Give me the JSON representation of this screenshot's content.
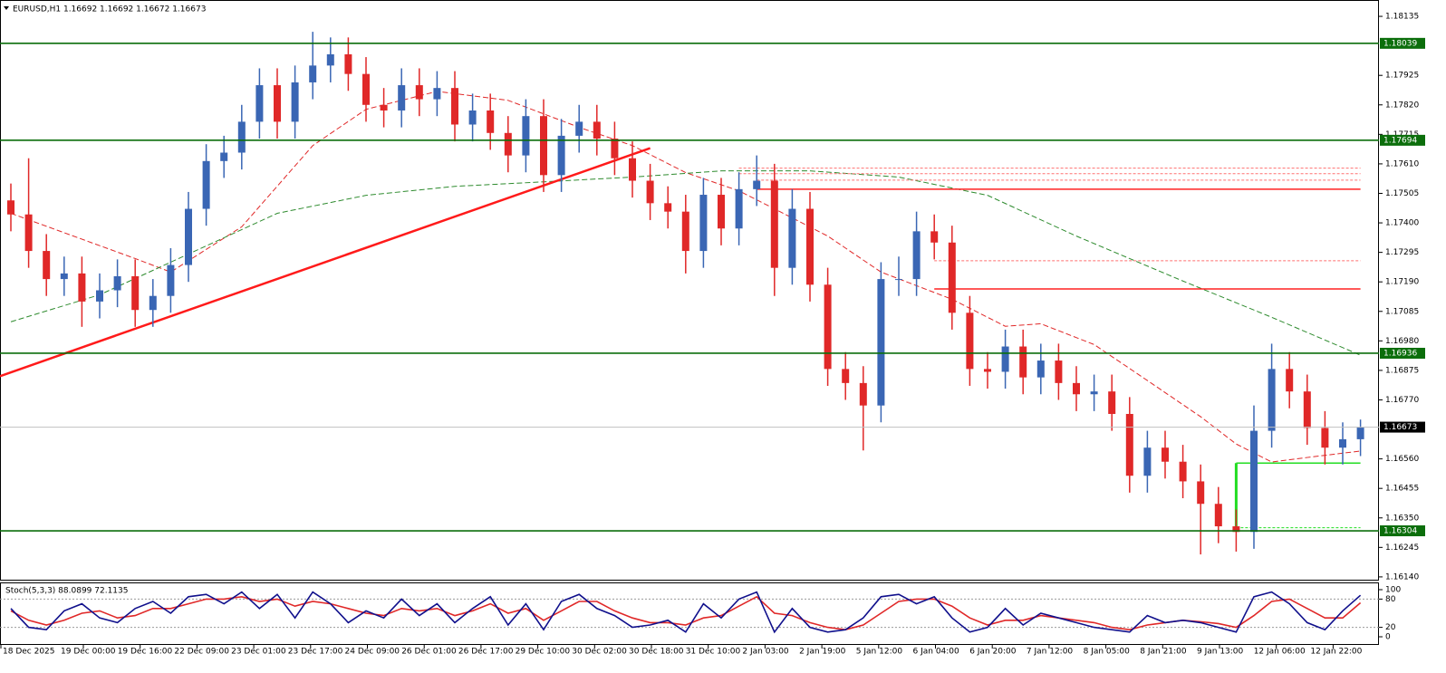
{
  "chart_data": [
    {
      "type": "candlestick",
      "title": "EURUSD,H1  1.16692 1.16692 1.16672 1.16673",
      "up_color": "#3a66b4",
      "down_color": "#e02828",
      "ylim": [
        1.1613,
        1.1819
      ],
      "yticks": [
        {
          "value": 1.18135,
          "label": "1.18135"
        },
        {
          "value": 1.17925,
          "label": "1.17925"
        },
        {
          "value": 1.1782,
          "label": "1.17820"
        },
        {
          "value": 1.17715,
          "label": "1.17715"
        },
        {
          "value": 1.1761,
          "label": "1.17610"
        },
        {
          "value": 1.17505,
          "label": "1.17505"
        },
        {
          "value": 1.174,
          "label": "1.17400"
        },
        {
          "value": 1.17295,
          "label": "1.17295"
        },
        {
          "value": 1.1719,
          "label": "1.17190"
        },
        {
          "value": 1.17085,
          "label": "1.17085"
        },
        {
          "value": 1.1698,
          "label": "1.16980"
        },
        {
          "value": 1.16875,
          "label": "1.16875"
        },
        {
          "value": 1.1677,
          "label": "1.16770"
        },
        {
          "value": 1.1656,
          "label": "1.16560"
        },
        {
          "value": 1.16455,
          "label": "1.16455"
        },
        {
          "value": 1.1635,
          "label": "1.16350"
        },
        {
          "value": 1.16245,
          "label": "1.16245"
        },
        {
          "value": 1.1614,
          "label": "1.16140"
        }
      ],
      "x_labels": [
        "18 Dec 2025",
        "19 Dec 00:00",
        "19 Dec 16:00",
        "22 Dec 09:00",
        "23 Dec 01:00",
        "23 Dec 17:00",
        "24 Dec 09:00",
        "26 Dec 01:00",
        "26 Dec 17:00",
        "29 Dec 10:00",
        "30 Dec 02:00",
        "30 Dec 18:00",
        "31 Dec 10:00",
        "2 Jan 03:00",
        "2 Jan 19:00",
        "5 Jan 12:00",
        "6 Jan 04:00",
        "6 Jan 20:00",
        "7 Jan 12:00",
        "8 Jan 05:00",
        "8 Jan 21:00",
        "9 Jan 13:00",
        "12 Jan 06:00",
        "12 Jan 22:00"
      ],
      "open": [
        1.1748,
        1.1743,
        1.173,
        1.172,
        1.1722,
        1.1712,
        1.1716,
        1.1721,
        1.1709,
        1.1714,
        1.1725,
        1.1745,
        1.1762,
        1.1765,
        1.1776,
        1.1789,
        1.1776,
        1.179,
        1.1796,
        1.18,
        1.1793,
        1.1782,
        1.178,
        1.1789,
        1.1784,
        1.1788,
        1.1775,
        1.178,
        1.1772,
        1.1764,
        1.1778,
        1.1757,
        1.1771,
        1.1776,
        1.177,
        1.1763,
        1.1755,
        1.1747,
        1.1744,
        1.173,
        1.175,
        1.1738,
        1.1752,
        1.1755,
        1.1724,
        1.1745,
        1.1718,
        1.1688,
        1.1683,
        1.1675,
        1.172,
        1.172,
        1.1737,
        1.1733,
        1.1708,
        1.1688,
        1.1687,
        1.1696,
        1.1685,
        1.1691,
        1.1683,
        1.1679,
        1.168,
        1.1672,
        1.165,
        1.166,
        1.1655,
        1.1648,
        1.164,
        1.1632,
        1.163,
        1.1666,
        1.1688,
        1.168,
        1.1667,
        1.166,
        1.1663
      ],
      "high": [
        1.1754,
        1.1763,
        1.1736,
        1.1728,
        1.1728,
        1.1722,
        1.1727,
        1.1727,
        1.172,
        1.1731,
        1.1751,
        1.1768,
        1.1771,
        1.1782,
        1.1795,
        1.1795,
        1.1796,
        1.1808,
        1.1806,
        1.1806,
        1.1799,
        1.1788,
        1.1795,
        1.1795,
        1.1794,
        1.1794,
        1.1786,
        1.1786,
        1.1778,
        1.1784,
        1.1784,
        1.1777,
        1.1782,
        1.1782,
        1.1776,
        1.1769,
        1.1761,
        1.1753,
        1.175,
        1.1756,
        1.1756,
        1.1758,
        1.1764,
        1.1761,
        1.1752,
        1.1751,
        1.1724,
        1.1694,
        1.1689,
        1.1726,
        1.1728,
        1.1744,
        1.1743,
        1.1739,
        1.1714,
        1.1694,
        1.1702,
        1.1702,
        1.1697,
        1.1697,
        1.1689,
        1.1686,
        1.1686,
        1.1678,
        1.1666,
        1.1666,
        1.1661,
        1.1654,
        1.1646,
        1.1638,
        1.1675,
        1.1697,
        1.1694,
        1.1686,
        1.1673,
        1.1669,
        1.167
      ],
      "low": [
        1.1737,
        1.1724,
        1.1714,
        1.1714,
        1.1703,
        1.1706,
        1.171,
        1.1703,
        1.1703,
        1.1708,
        1.1719,
        1.1739,
        1.1756,
        1.1759,
        1.177,
        1.177,
        1.177,
        1.1784,
        1.179,
        1.1787,
        1.1776,
        1.1774,
        1.1774,
        1.1778,
        1.1778,
        1.1769,
        1.1769,
        1.1766,
        1.1758,
        1.1758,
        1.1751,
        1.1751,
        1.1765,
        1.1764,
        1.1757,
        1.1749,
        1.1741,
        1.1738,
        1.1722,
        1.1724,
        1.1732,
        1.1732,
        1.1746,
        1.1714,
        1.1718,
        1.1712,
        1.1682,
        1.1677,
        1.1659,
        1.1669,
        1.1714,
        1.1714,
        1.1727,
        1.1702,
        1.1682,
        1.1681,
        1.1681,
        1.1679,
        1.1679,
        1.1677,
        1.1673,
        1.1673,
        1.1666,
        1.1644,
        1.1644,
        1.1649,
        1.1642,
        1.1622,
        1.1626,
        1.1623,
        1.1624,
        1.166,
        1.1674,
        1.1661,
        1.1654,
        1.1654,
        1.1657
      ],
      "close": [
        1.1743,
        1.173,
        1.172,
        1.1722,
        1.1712,
        1.1716,
        1.1721,
        1.1709,
        1.1714,
        1.1725,
        1.1745,
        1.1762,
        1.1765,
        1.1776,
        1.1789,
        1.1776,
        1.179,
        1.1796,
        1.18,
        1.1793,
        1.1782,
        1.178,
        1.1789,
        1.1784,
        1.1788,
        1.1775,
        1.178,
        1.1772,
        1.1764,
        1.1778,
        1.1757,
        1.1771,
        1.1776,
        1.177,
        1.1763,
        1.1755,
        1.1747,
        1.1744,
        1.173,
        1.175,
        1.1738,
        1.1752,
        1.1755,
        1.1724,
        1.1745,
        1.1718,
        1.1688,
        1.1683,
        1.1675,
        1.172,
        1.172,
        1.1737,
        1.1733,
        1.1708,
        1.1688,
        1.1687,
        1.1696,
        1.1685,
        1.1691,
        1.1683,
        1.1679,
        1.168,
        1.1672,
        1.165,
        1.166,
        1.1655,
        1.1648,
        1.164,
        1.1632,
        1.163,
        1.1666,
        1.1688,
        1.168,
        1.1667,
        1.166,
        1.1663,
        1.16673
      ],
      "moving_averages": [
        {
          "color": "#e02828",
          "x": [
            0,
            7,
            9,
            13,
            17,
            20,
            24,
            28,
            32,
            35,
            38,
            41,
            43,
            46,
            49,
            53,
            56,
            58,
            61,
            64,
            67,
            69,
            71,
            73,
            76
          ],
          "values": [
            1.17434,
            1.17273,
            1.17225,
            1.17386,
            1.17675,
            1.17804,
            1.17868,
            1.17836,
            1.1774,
            1.17675,
            1.17579,
            1.17514,
            1.1745,
            1.17353,
            1.17225,
            1.17128,
            1.17032,
            1.17041,
            1.16967,
            1.16839,
            1.1671,
            1.16613,
            1.16549,
            1.16565,
            1.16588
          ]
        },
        {
          "color": "#2e8b2e",
          "x": [
            0,
            5,
            10,
            15,
            20,
            25,
            30,
            35,
            40,
            45,
            50,
            55,
            60,
            66,
            71,
            76
          ],
          "values": [
            1.17048,
            1.17144,
            1.17289,
            1.17434,
            1.17498,
            1.1753,
            1.17546,
            1.17563,
            1.17585,
            1.17585,
            1.17563,
            1.17498,
            1.17353,
            1.17193,
            1.17064,
            1.16929
          ]
        }
      ],
      "trendline": {
        "color": "#ff1a1a",
        "x": [
          0,
          36
        ],
        "values": [
          1.16868,
          1.17666
        ]
      },
      "levels": [
        {
          "value": 1.18039,
          "color": "#0b6e0b"
        },
        {
          "value": 1.17694,
          "color": "#0b6e0b"
        },
        {
          "value": 1.16936,
          "color": "#0b6e0b"
        },
        {
          "value": 1.16304,
          "color": "#0b6e0b"
        }
      ],
      "current_price": 1.16673,
      "segments": [
        {
          "value": 1.1752,
          "x": [
            42,
            76
          ],
          "color": "#ff2020",
          "style": "solid"
        },
        {
          "value": 1.17595,
          "x": [
            41,
            76
          ],
          "color": "#ff7070",
          "style": "dashed"
        },
        {
          "value": 1.17575,
          "x": [
            41,
            76
          ],
          "color": "#ff7070",
          "style": "dashed"
        },
        {
          "value": 1.17552,
          "x": [
            42,
            76
          ],
          "color": "#ff7070",
          "style": "dashed"
        },
        {
          "value": 1.17165,
          "x": [
            52,
            76
          ],
          "color": "#ff2020",
          "style": "solid"
        },
        {
          "value": 1.17265,
          "x": [
            52,
            76
          ],
          "color": "#ff7070",
          "style": "dashed"
        },
        {
          "value": 1.16545,
          "x": [
            69,
            76
          ],
          "color": "#22dd22",
          "style": "solid"
        },
        {
          "value": 1.16315,
          "x": [
            69,
            76
          ],
          "color": "#22dd22",
          "style": "dashed"
        }
      ]
    },
    {
      "type": "line",
      "title": "Stoch(5,3,3) 88.0899 72.1135",
      "ylim": [
        0,
        100
      ],
      "yticks": [
        0,
        20,
        80,
        100
      ],
      "levels": [
        20,
        80
      ],
      "series": [
        {
          "color": "#10108c",
          "values": [
            60,
            20,
            15,
            55,
            70,
            40,
            30,
            60,
            75,
            50,
            85,
            90,
            70,
            95,
            60,
            90,
            40,
            95,
            70,
            30,
            55,
            40,
            80,
            45,
            70,
            30,
            60,
            85,
            25,
            70,
            15,
            75,
            90,
            60,
            45,
            20,
            25,
            35,
            10,
            70,
            40,
            80,
            95,
            10,
            60,
            20,
            10,
            15,
            40,
            85,
            90,
            70,
            85,
            40,
            10,
            20,
            60,
            25,
            50,
            40,
            30,
            20,
            15,
            10,
            45,
            30,
            35,
            30,
            20,
            10,
            85,
            95,
            70,
            30,
            15,
            55,
            88.0899
          ]
        },
        {
          "color": "#e02828",
          "values": [
            55,
            35,
            25,
            35,
            50,
            55,
            40,
            45,
            60,
            60,
            70,
            80,
            80,
            85,
            75,
            80,
            65,
            75,
            70,
            60,
            50,
            45,
            60,
            55,
            60,
            45,
            55,
            70,
            50,
            60,
            35,
            55,
            75,
            75,
            55,
            40,
            30,
            30,
            25,
            40,
            45,
            65,
            85,
            50,
            45,
            30,
            20,
            15,
            25,
            50,
            75,
            80,
            80,
            65,
            40,
            25,
            35,
            35,
            45,
            40,
            35,
            30,
            20,
            15,
            25,
            30,
            35,
            32,
            28,
            20,
            45,
            75,
            80,
            60,
            40,
            40,
            72.1135
          ]
        }
      ]
    }
  ]
}
